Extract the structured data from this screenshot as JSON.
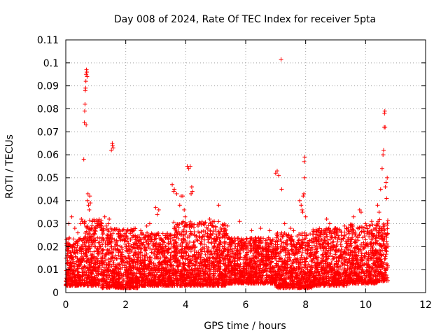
{
  "chart_data": {
    "type": "scatter",
    "title": "Day 008 of 2024, Rate Of TEC Index for receiver 5pta",
    "xlabel": "GPS time / hours",
    "ylabel": "ROTI / TECUs",
    "xlim": [
      0,
      12
    ],
    "ylim": [
      0,
      0.11
    ],
    "x_ticks": [
      0,
      2,
      4,
      6,
      8,
      10,
      12
    ],
    "x_tick_labels": [
      "0",
      "2",
      "4",
      "6",
      "8",
      "10",
      "12"
    ],
    "y_ticks": [
      0,
      0.01,
      0.02,
      0.03,
      0.04,
      0.05,
      0.06,
      0.07,
      0.08,
      0.09,
      0.1,
      0.11
    ],
    "y_tick_labels": [
      "0",
      "0.01",
      "0.02",
      "0.03",
      "0.04",
      "0.05",
      "0.06",
      "0.07",
      "0.08",
      "0.09",
      "0.1",
      "0.11"
    ],
    "grid": true,
    "marker": "+",
    "color": "#ff0000",
    "series": [
      {
        "name": "ROTI",
        "points": [
          [
            0.6,
            0.058
          ],
          [
            0.62,
            0.074
          ],
          [
            0.64,
            0.082
          ],
          [
            0.63,
            0.079
          ],
          [
            0.65,
            0.088
          ],
          [
            0.66,
            0.089
          ],
          [
            0.67,
            0.092
          ],
          [
            0.68,
            0.095
          ],
          [
            0.69,
            0.097
          ],
          [
            0.7,
            0.096
          ],
          [
            0.68,
            0.073
          ],
          [
            0.71,
            0.094
          ],
          [
            0.72,
            0.04
          ],
          [
            0.74,
            0.043
          ],
          [
            0.76,
            0.038
          ],
          [
            0.78,
            0.036
          ],
          [
            0.8,
            0.042
          ],
          [
            0.82,
            0.039
          ],
          [
            1.52,
            0.062
          ],
          [
            1.55,
            0.065
          ],
          [
            1.58,
            0.063
          ],
          [
            1.56,
            0.064
          ],
          [
            1.45,
            0.032
          ],
          [
            1.42,
            0.03
          ],
          [
            1.5,
            0.028
          ],
          [
            3.0,
            0.037
          ],
          [
            3.05,
            0.034
          ],
          [
            3.1,
            0.036
          ],
          [
            3.55,
            0.047
          ],
          [
            3.6,
            0.044
          ],
          [
            3.62,
            0.045
          ],
          [
            3.7,
            0.043
          ],
          [
            3.8,
            0.038
          ],
          [
            3.85,
            0.042
          ],
          [
            3.9,
            0.042
          ],
          [
            3.95,
            0.036
          ],
          [
            3.98,
            0.033
          ],
          [
            4.05,
            0.055
          ],
          [
            4.1,
            0.054
          ],
          [
            4.15,
            0.055
          ],
          [
            4.2,
            0.046
          ],
          [
            4.22,
            0.044
          ],
          [
            4.18,
            0.043
          ],
          [
            5.1,
            0.038
          ],
          [
            4.8,
            0.032
          ],
          [
            4.85,
            0.03
          ],
          [
            4.9,
            0.029
          ],
          [
            4.95,
            0.031
          ],
          [
            7.0,
            0.052
          ],
          [
            7.05,
            0.053
          ],
          [
            7.1,
            0.051
          ],
          [
            7.2,
            0.045
          ],
          [
            7.18,
            0.1015
          ],
          [
            7.3,
            0.03
          ],
          [
            7.5,
            0.028
          ],
          [
            7.6,
            0.027
          ],
          [
            7.8,
            0.04
          ],
          [
            7.85,
            0.038
          ],
          [
            7.88,
            0.036
          ],
          [
            7.9,
            0.035
          ],
          [
            7.92,
            0.042
          ],
          [
            7.95,
            0.057
          ],
          [
            7.97,
            0.059
          ],
          [
            7.96,
            0.05
          ],
          [
            7.94,
            0.043
          ],
          [
            8.0,
            0.033
          ],
          [
            8.7,
            0.032
          ],
          [
            8.8,
            0.03
          ],
          [
            9.0,
            0.028
          ],
          [
            9.6,
            0.033
          ],
          [
            9.8,
            0.036
          ],
          [
            9.85,
            0.035
          ],
          [
            10.4,
            0.038
          ],
          [
            10.45,
            0.035
          ],
          [
            10.5,
            0.045
          ],
          [
            10.55,
            0.054
          ],
          [
            10.58,
            0.06
          ],
          [
            10.6,
            0.062
          ],
          [
            10.62,
            0.072
          ],
          [
            10.63,
            0.078
          ],
          [
            10.64,
            0.079
          ],
          [
            10.65,
            0.072
          ],
          [
            10.68,
            0.048
          ],
          [
            10.7,
            0.041
          ],
          [
            10.72,
            0.05
          ],
          [
            10.66,
            0.046
          ],
          [
            0.2,
            0.033
          ],
          [
            0.1,
            0.03
          ],
          [
            0.3,
            0.028
          ],
          [
            0.4,
            0.026
          ],
          [
            0.5,
            0.03
          ],
          [
            0.52,
            0.032
          ],
          [
            0.55,
            0.031
          ],
          [
            1.2,
            0.03
          ],
          [
            1.3,
            0.033
          ],
          [
            1.35,
            0.029
          ],
          [
            2.5,
            0.027
          ],
          [
            2.7,
            0.029
          ],
          [
            2.8,
            0.03
          ],
          [
            5.4,
            0.029
          ],
          [
            5.8,
            0.031
          ],
          [
            6.2,
            0.027
          ],
          [
            6.5,
            0.028
          ],
          [
            6.8,
            0.027
          ],
          [
            9.3,
            0.029
          ],
          [
            10.0,
            0.03
          ],
          [
            10.2,
            0.031
          ]
        ]
      }
    ],
    "dense_bands": [
      {
        "x_start": 0.0,
        "x_end": 0.6,
        "y_min": 0.003,
        "y_max": 0.024
      },
      {
        "x_start": 0.6,
        "x_end": 1.2,
        "y_min": 0.003,
        "y_max": 0.032
      },
      {
        "x_start": 1.2,
        "x_end": 2.4,
        "y_min": 0.002,
        "y_max": 0.028
      },
      {
        "x_start": 2.4,
        "x_end": 3.6,
        "y_min": 0.003,
        "y_max": 0.026
      },
      {
        "x_start": 3.6,
        "x_end": 5.4,
        "y_min": 0.003,
        "y_max": 0.031
      },
      {
        "x_start": 5.4,
        "x_end": 7.0,
        "y_min": 0.004,
        "y_max": 0.024
      },
      {
        "x_start": 7.0,
        "x_end": 8.2,
        "y_min": 0.002,
        "y_max": 0.026
      },
      {
        "x_start": 8.2,
        "x_end": 9.4,
        "y_min": 0.003,
        "y_max": 0.028
      },
      {
        "x_start": 9.4,
        "x_end": 10.4,
        "y_min": 0.004,
        "y_max": 0.03
      },
      {
        "x_start": 10.4,
        "x_end": 10.75,
        "y_min": 0.005,
        "y_max": 0.032
      }
    ]
  }
}
